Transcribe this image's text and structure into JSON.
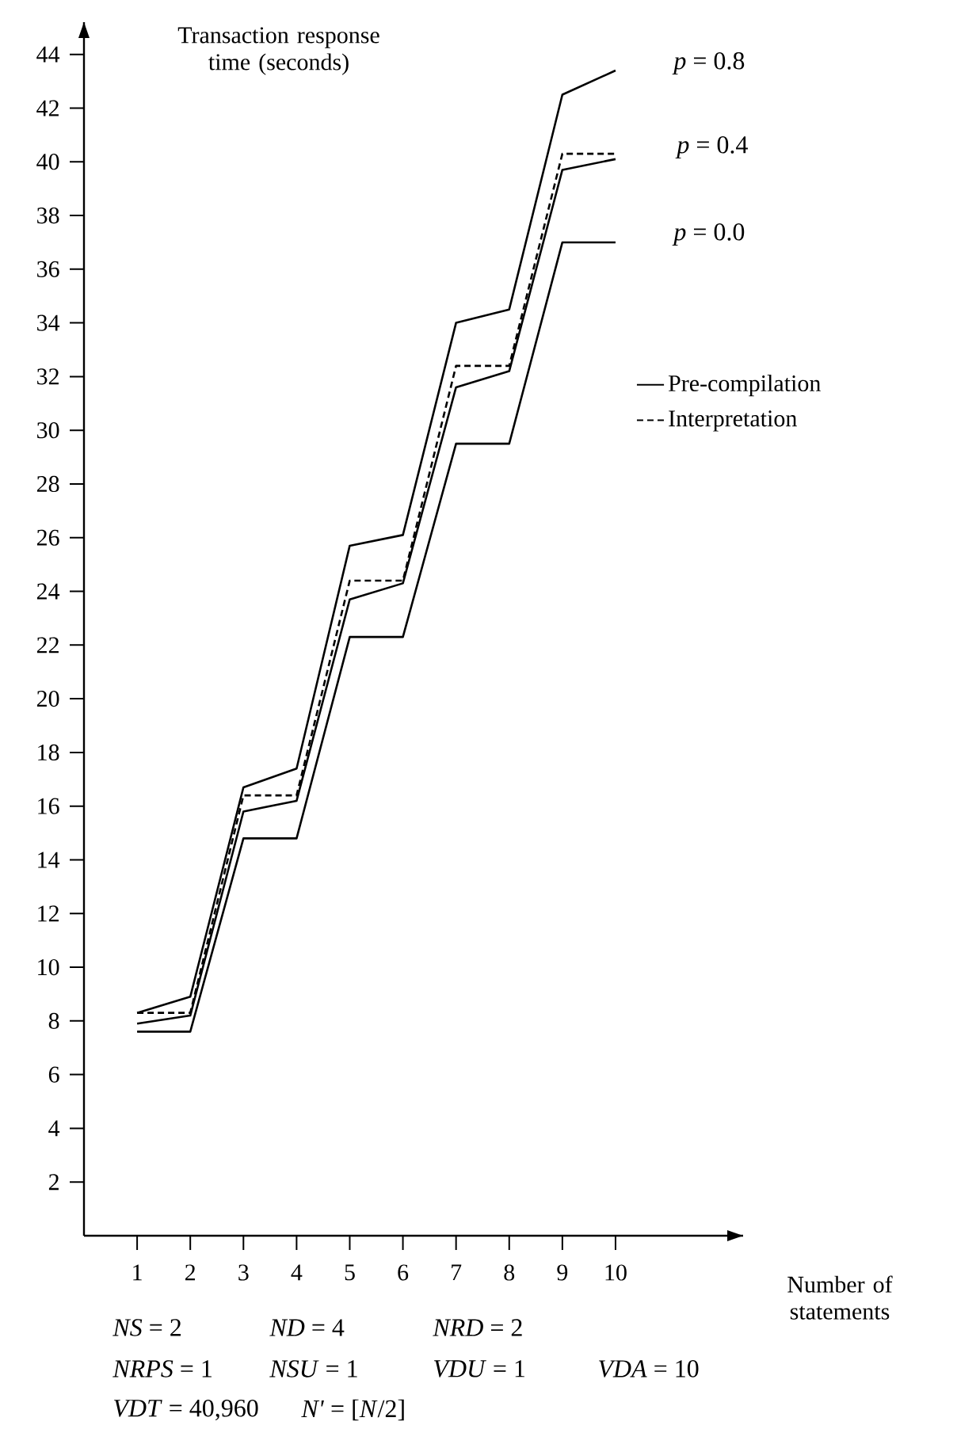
{
  "chart_data": {
    "type": "line",
    "xlabel": "Number of statements",
    "ylabel": "Transaction response time (seconds)",
    "x": [
      1,
      2,
      3,
      4,
      5,
      6,
      7,
      8,
      9,
      10
    ],
    "xlim": [
      0,
      12.4
    ],
    "ylim": [
      0,
      45.2
    ],
    "xticks": [
      1,
      2,
      3,
      4,
      5,
      6,
      7,
      8,
      9,
      10
    ],
    "yticks": [
      2,
      4,
      6,
      8,
      10,
      12,
      14,
      16,
      18,
      20,
      22,
      24,
      26,
      28,
      30,
      32,
      34,
      36,
      38,
      40,
      42,
      44
    ],
    "marker": "none",
    "legend": "right",
    "grid": false,
    "series": [
      {
        "name": "Pre-compilation",
        "color": "#000000",
        "line_style": "solid",
        "values": [
          8.3,
          8.9,
          16.7,
          17.4,
          25.7,
          26.1,
          34.0,
          34.5,
          42.5,
          43.4
        ]
      },
      {
        "name": "Interpretation",
        "color": "#000000",
        "line_style": "dashed",
        "values": [
          8.3,
          8.3,
          16.4,
          16.4,
          24.4,
          24.4,
          32.4,
          32.4,
          40.3,
          40.3
        ]
      },
      {
        "color": "#000000",
        "line_style": "solid",
        "values": [
          7.9,
          8.2,
          15.8,
          16.2,
          23.7,
          24.3,
          31.6,
          32.2,
          39.7,
          40.1
        ]
      },
      {
        "color": "#000000",
        "line_style": "solid",
        "values": [
          7.6,
          7.6,
          14.8,
          14.8,
          22.3,
          22.3,
          29.5,
          29.5,
          37.0,
          37.0
        ]
      }
    ],
    "annotations": [
      "*p* = 0.8",
      "*p* = 0.4",
      "*p* = 0.0",
      "*NS* = 2",
      "*ND* = 4",
      "*NRD* = 2",
      "*NRPS* = 1",
      "*NSU* = 1",
      "*VDU* = 1",
      "*VDA* = 10",
      "*VDT* = 40,960",
      "*N'* = [*N*/2]"
    ]
  }
}
